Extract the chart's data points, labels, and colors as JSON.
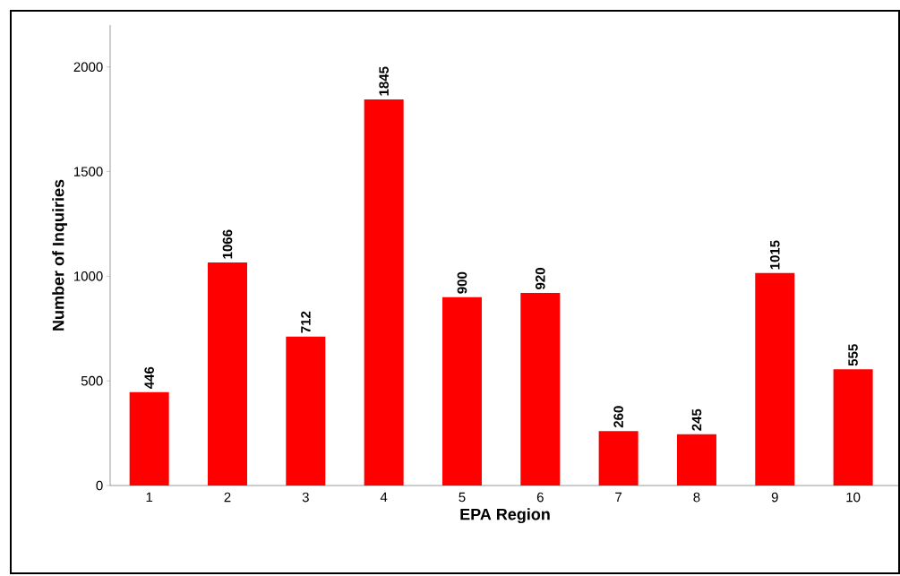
{
  "chart_data": {
    "type": "bar",
    "xlabel": "EPA Region",
    "ylabel": "Number of Inquiries",
    "categories": [
      "1",
      "2",
      "3",
      "4",
      "5",
      "6",
      "7",
      "8",
      "9",
      "10"
    ],
    "values": [
      446,
      1066,
      712,
      1845,
      900,
      920,
      260,
      245,
      1015,
      555
    ],
    "color": "#ff0000",
    "ylim": [
      0,
      2200
    ],
    "yticks": [
      0,
      500,
      1000,
      1500,
      2000
    ],
    "data_labels": true,
    "grid": false
  }
}
